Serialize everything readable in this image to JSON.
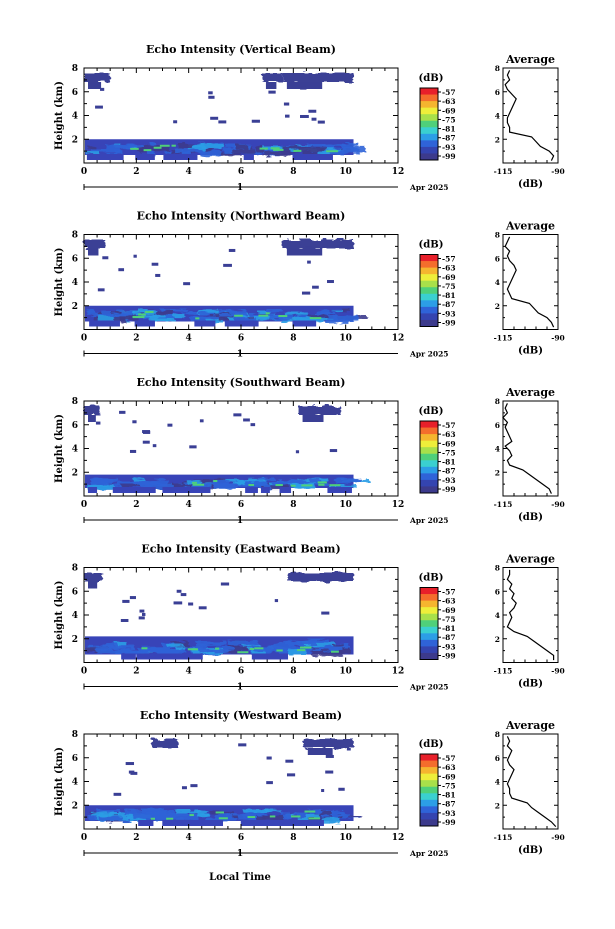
{
  "figure": {
    "xlabel": "Local Time",
    "date_label": "Apr 2025",
    "day_label": "1",
    "units_label": "(dB)",
    "average_title": "Average",
    "ylabel": "Height (km)"
  },
  "colorbar": {
    "ticks": [
      "-57",
      "-63",
      "-69",
      "-75",
      "-81",
      "-87",
      "-93",
      "-99"
    ],
    "colors": [
      "#e8202a",
      "#f46d2c",
      "#f5b52f",
      "#eeee3a",
      "#a8e04a",
      "#4fd07a",
      "#3ad0d0",
      "#2c9ee6",
      "#2f63d8",
      "#3444b0",
      "#3c3a8c"
    ]
  },
  "chart_data": [
    {
      "type": "heatmap",
      "title": "Echo Intensity (Vertical Beam)",
      "xlabel": "",
      "ylabel": "Height (km)",
      "xlim": [
        0,
        12
      ],
      "ylim": [
        0,
        8
      ],
      "xticks": [
        0,
        2,
        4,
        6,
        8,
        10,
        12
      ],
      "yticks": [
        2,
        4,
        6,
        8
      ],
      "data_end_hour": 10.3,
      "layer_top_km": 2.0,
      "upper_echo_hours": [
        [
          0,
          1
        ],
        [
          6.8,
          7.6
        ],
        [
          7.6,
          10.3
        ]
      ],
      "zrange_db": [
        -99,
        -57
      ],
      "average": {
        "xlim": [
          -115,
          -90
        ],
        "xticks": [
          -115,
          -90
        ],
        "xlabel": "(dB)",
        "height_km": [
          0.2,
          0.6,
          1.0,
          1.4,
          1.8,
          2.2,
          2.6,
          3.0,
          3.4,
          3.8,
          4.2,
          4.6,
          5.0,
          5.4,
          5.8,
          6.2,
          6.6,
          7.0,
          7.4,
          7.8
        ],
        "value_db": [
          -93,
          -92,
          -94,
          -98,
          -100,
          -102,
          -112,
          -112,
          -113,
          -113,
          -112,
          -111,
          -110,
          -109,
          -111,
          -113,
          -114,
          -112,
          -113,
          -112
        ]
      }
    },
    {
      "type": "heatmap",
      "title": "Echo Intensity (Northward Beam)",
      "xlabel": "",
      "ylabel": "Height (km)",
      "xlim": [
        0,
        12
      ],
      "ylim": [
        0,
        8
      ],
      "xticks": [
        0,
        2,
        4,
        6,
        8,
        10,
        12
      ],
      "yticks": [
        2,
        4,
        6,
        8
      ],
      "data_end_hour": 10.3,
      "layer_top_km": 2.0,
      "upper_echo_hours": [
        [
          0,
          0.8
        ],
        [
          7.6,
          10.3
        ]
      ],
      "zrange_db": [
        -99,
        -57
      ],
      "average": {
        "xlim": [
          -115,
          -90
        ],
        "xticks": [
          -115,
          -90
        ],
        "xlabel": "(dB)",
        "height_km": [
          0.2,
          0.6,
          1.0,
          1.4,
          1.8,
          2.2,
          2.6,
          3.0,
          3.4,
          3.8,
          4.2,
          4.6,
          5.0,
          5.4,
          5.8,
          6.2,
          6.6,
          7.0,
          7.4,
          7.8
        ],
        "value_db": [
          -92,
          -93,
          -95,
          -99,
          -101,
          -103,
          -111,
          -112,
          -113,
          -112,
          -111,
          -110,
          -109,
          -110,
          -112,
          -113,
          -112,
          -114,
          -113,
          -112
        ]
      }
    },
    {
      "type": "heatmap",
      "title": "Echo Intensity (Southward Beam)",
      "xlabel": "",
      "ylabel": "Height (km)",
      "xlim": [
        0,
        12
      ],
      "ylim": [
        0,
        8
      ],
      "xticks": [
        0,
        2,
        4,
        6,
        8,
        10,
        12
      ],
      "yticks": [
        2,
        4,
        6,
        8
      ],
      "data_end_hour": 10.3,
      "layer_top_km": 1.8,
      "upper_echo_hours": [
        [
          0,
          0.6
        ],
        [
          8.2,
          9.8
        ]
      ],
      "zrange_db": [
        -99,
        -57
      ],
      "average": {
        "xlim": [
          -115,
          -90
        ],
        "xticks": [
          -115,
          -90
        ],
        "xlabel": "(dB)",
        "height_km": [
          0.2,
          0.6,
          1.0,
          1.4,
          1.8,
          2.2,
          2.6,
          3.0,
          3.4,
          3.8,
          4.2,
          4.6,
          5.0,
          5.4,
          5.8,
          6.2,
          6.6,
          7.0,
          7.4,
          7.8
        ],
        "value_db": [
          -93,
          -94,
          -97,
          -100,
          -103,
          -106,
          -112,
          -113,
          -111,
          -112,
          -114,
          -111,
          -112,
          -113,
          -114,
          -113,
          -115,
          -113,
          -114,
          -113
        ]
      }
    },
    {
      "type": "heatmap",
      "title": "Echo Intensity (Eastward Beam)",
      "xlabel": "",
      "ylabel": "Height (km)",
      "xlim": [
        0,
        12
      ],
      "ylim": [
        0,
        8
      ],
      "xticks": [
        0,
        2,
        4,
        6,
        8,
        10,
        12
      ],
      "yticks": [
        2,
        4,
        6,
        8
      ],
      "data_end_hour": 10.3,
      "layer_top_km": 2.2,
      "upper_echo_hours": [
        [
          0,
          0.7
        ],
        [
          7.8,
          10.3
        ]
      ],
      "zrange_db": [
        -99,
        -57
      ],
      "average": {
        "xlim": [
          -115,
          -90
        ],
        "xticks": [
          -115,
          -90
        ],
        "xlabel": "(dB)",
        "height_km": [
          0.2,
          0.6,
          1.0,
          1.4,
          1.8,
          2.2,
          2.6,
          3.0,
          3.4,
          3.8,
          4.2,
          4.6,
          5.0,
          5.4,
          5.8,
          6.2,
          6.6,
          7.0,
          7.4,
          7.8
        ],
        "value_db": [
          -92,
          -92,
          -95,
          -98,
          -101,
          -104,
          -110,
          -113,
          -112,
          -111,
          -112,
          -110,
          -109,
          -111,
          -110,
          -112,
          -111,
          -113,
          -112,
          -112
        ]
      }
    },
    {
      "type": "heatmap",
      "title": "Echo Intensity (Westward Beam)",
      "xlabel": "Local Time",
      "ylabel": "Height (km)",
      "xlim": [
        0,
        12
      ],
      "ylim": [
        0,
        8
      ],
      "xticks": [
        0,
        2,
        4,
        6,
        8,
        10,
        12
      ],
      "yticks": [
        2,
        4,
        6,
        8
      ],
      "data_end_hour": 10.3,
      "layer_top_km": 2.0,
      "upper_echo_hours": [
        [
          2.6,
          3.6
        ],
        [
          8.4,
          10.3
        ]
      ],
      "zrange_db": [
        -99,
        -57
      ],
      "average": {
        "xlim": [
          -115,
          -90
        ],
        "xticks": [
          -115,
          -90
        ],
        "xlabel": "(dB)",
        "height_km": [
          0.2,
          0.6,
          1.0,
          1.4,
          1.8,
          2.2,
          2.6,
          3.0,
          3.4,
          3.8,
          4.2,
          4.6,
          5.0,
          5.4,
          5.8,
          6.2,
          6.6,
          7.0,
          7.4,
          7.8
        ],
        "value_db": [
          -91,
          -93,
          -96,
          -99,
          -102,
          -104,
          -111,
          -112,
          -112,
          -113,
          -112,
          -111,
          -110,
          -112,
          -113,
          -112,
          -111,
          -113,
          -112,
          -113
        ]
      }
    }
  ]
}
